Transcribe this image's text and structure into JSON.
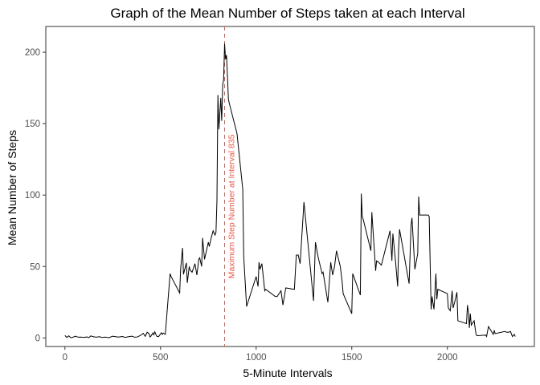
{
  "chart_data": {
    "type": "line",
    "title": "Graph of the Mean Number of Steps taken at each Interval",
    "xlabel": "5-Minute Intervals",
    "ylabel": "Mean Number of Steps",
    "xlim": [
      -100,
      2455
    ],
    "ylim": [
      -6,
      218
    ],
    "x_ticks": [
      0,
      500,
      1000,
      1500,
      2000
    ],
    "y_ticks": [
      0,
      50,
      100,
      150,
      200
    ],
    "grid": false,
    "line_color": "#000000",
    "annotation": {
      "text": "Maximum Step Number at Interval 835",
      "x": 835,
      "color": "#e8594a"
    },
    "series": [
      {
        "x": [
          0,
          10,
          20,
          30,
          40,
          55,
          70,
          80,
          100,
          115,
          125,
          135,
          150,
          165,
          180,
          195,
          210,
          230,
          250,
          265,
          280,
          300,
          315,
          330,
          350,
          365,
          380,
          395,
          410,
          420,
          425,
          430,
          440,
          445,
          450,
          460,
          465,
          470,
          480,
          490,
          500,
          505,
          510,
          515,
          525,
          550,
          555,
          600,
          605,
          615,
          620,
          635,
          640,
          650,
          655,
          665,
          680,
          690,
          700,
          705,
          715,
          720,
          730,
          740,
          745,
          750,
          755,
          765,
          775,
          785,
          790,
          795,
          800,
          805,
          815,
          820,
          825,
          830,
          835,
          840,
          845,
          850,
          855,
          860,
          900,
          930,
          935,
          950,
          1000,
          1010,
          1015,
          1020,
          1030,
          1045,
          1050,
          1100,
          1110,
          1130,
          1140,
          1155,
          1200,
          1210,
          1220,
          1230,
          1250,
          1300,
          1310,
          1325,
          1345,
          1350,
          1375,
          1390,
          1400,
          1410,
          1420,
          1440,
          1450,
          1455,
          1500,
          1505,
          1545,
          1550,
          1555,
          1560,
          1600,
          1605,
          1625,
          1630,
          1640,
          1655,
          1700,
          1710,
          1715,
          1730,
          1740,
          1745,
          1750,
          1800,
          1810,
          1815,
          1830,
          1845,
          1850,
          1855,
          1900,
          1905,
          1915,
          1920,
          1930,
          1940,
          1945,
          1950,
          2000,
          2005,
          2010,
          2015,
          2025,
          2030,
          2040,
          2050,
          2055,
          2100,
          2105,
          2110,
          2115,
          2120,
          2125,
          2140,
          2145,
          2150,
          2155,
          2200,
          2205,
          2215,
          2240,
          2245,
          2250,
          2300,
          2310,
          2320,
          2330,
          2340,
          2350,
          2355
        ],
        "values": [
          1.7,
          0.3,
          1.5,
          0.2,
          0.4,
          1.2,
          0.5,
          0.6,
          0.4,
          0.7,
          0.2,
          1.4,
          0.8,
          0.5,
          0.9,
          0.3,
          0.6,
          0.2,
          1.2,
          0.9,
          0.6,
          1.0,
          0.4,
          0.8,
          1.2,
          0.5,
          0.7,
          1.8,
          3.2,
          1.1,
          2.5,
          4.0,
          3.0,
          0.7,
          1.3,
          3.5,
          2.2,
          4.3,
          1.2,
          0.9,
          2.8,
          3.6,
          2.5,
          3.4,
          2.5,
          45.0,
          43.0,
          31.5,
          48.0,
          63.0,
          44.5,
          52.5,
          38.5,
          50.0,
          47.5,
          46.0,
          52.0,
          44.0,
          55.0,
          56.0,
          50.0,
          70.0,
          55.0,
          61.0,
          64.0,
          67.0,
          64.0,
          70.0,
          75.0,
          72.0,
          74.0,
          96.0,
          170.0,
          146.0,
          168.0,
          152.0,
          177.0,
          181.0,
          206.0,
          195.0,
          198.0,
          183.0,
          167.0,
          164.0,
          143.0,
          104.0,
          57.0,
          22.0,
          43.0,
          36.0,
          53.0,
          48.0,
          52.0,
          33.0,
          34.0,
          29.0,
          29.0,
          33.0,
          23.0,
          35.0,
          34.0,
          58.0,
          58.0,
          52.0,
          95.0,
          26.0,
          67.0,
          56.0,
          45.0,
          46.0,
          25.0,
          53.0,
          44.0,
          50.0,
          61.0,
          50.0,
          39.0,
          31.0,
          17.0,
          45.0,
          30.0,
          101.0,
          85.0,
          83.0,
          61.0,
          88.0,
          47.0,
          54.0,
          53.0,
          51.0,
          75.0,
          54.0,
          73.0,
          52.0,
          36.0,
          62.0,
          76.0,
          38.0,
          79.0,
          84.0,
          48.0,
          59.0,
          99.0,
          86.0,
          86.0,
          85.0,
          20.0,
          29.0,
          20.0,
          45.0,
          27.0,
          34.0,
          31.0,
          21.0,
          20.0,
          19.0,
          33.0,
          21.0,
          26.0,
          32.0,
          12.0,
          10.0,
          23.0,
          18.0,
          7.0,
          17.0,
          9.0,
          12.0,
          7.0,
          2.5,
          1.5,
          2.0,
          1.0,
          8.0,
          2.5,
          5.0,
          3.0,
          4.5,
          4.0,
          4.0,
          4.5,
          1.0,
          2.5,
          1.0
        ]
      }
    ]
  }
}
